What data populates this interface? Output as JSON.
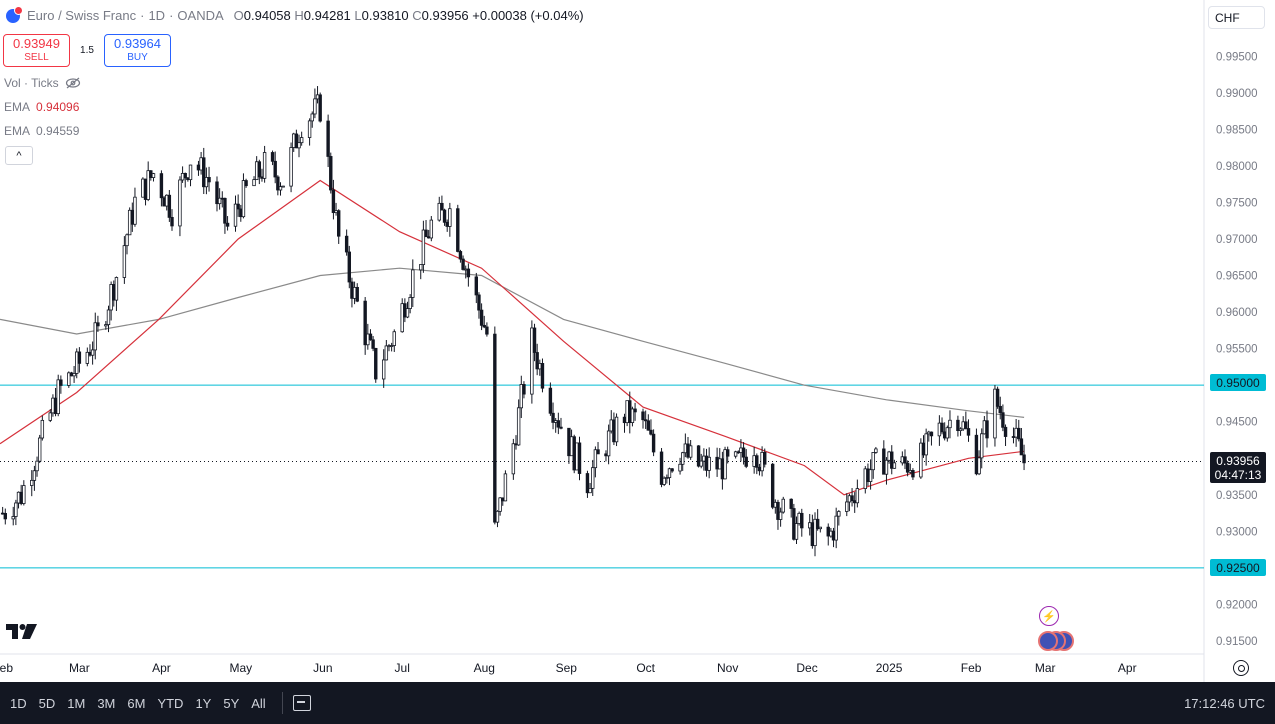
{
  "header": {
    "symbol": "Euro / Swiss Franc",
    "sep1": "·",
    "interval": "1D",
    "sep2": "·",
    "exchange": "OANDA",
    "ohlc": {
      "o_label": "O",
      "o": "0.94058",
      "h_label": "H",
      "h": "0.94281",
      "l_label": "L",
      "l": "0.93810",
      "c_label": "C",
      "c": "0.93956",
      "change": "+0.00038 (+0.04%)"
    }
  },
  "trade": {
    "sell_price": "0.93949",
    "sell_label": "SELL",
    "spread": "1.5",
    "buy_price": "0.93964",
    "buy_label": "BUY"
  },
  "indicators": {
    "vol": "Vol · Ticks",
    "ema1_label": "EMA",
    "ema1_value": "0.94096",
    "ema2_label": "EMA",
    "ema2_value": "0.94559",
    "collapse": "^"
  },
  "price_axis": {
    "currency": "CHF",
    "labels": [
      "0.99500",
      "0.99000",
      "0.98500",
      "0.98000",
      "0.97500",
      "0.97000",
      "0.96500",
      "0.96000",
      "0.95500",
      "0.95000",
      "0.94500",
      "0.94000",
      "0.93500",
      "0.93000",
      "0.92500",
      "0.92000",
      "0.91500"
    ],
    "level_high": "0.95000",
    "level_low": "0.92500",
    "current_price": "0.93956",
    "countdown": "04:47:13"
  },
  "time_axis": {
    "labels": [
      "Feb",
      "Mar",
      "Apr",
      "May",
      "Jun",
      "Jul",
      "Aug",
      "Sep",
      "Oct",
      "Nov",
      "Dec",
      "2025",
      "Feb",
      "Mar",
      "Apr"
    ]
  },
  "bottom_bar": {
    "ranges": [
      "1D",
      "5D",
      "1M",
      "3M",
      "6M",
      "YTD",
      "1Y",
      "5Y",
      "All"
    ],
    "clock": "17:12:46 UTC"
  },
  "colors": {
    "up": "#131722",
    "down": "#131722",
    "ema_fast": "#d6313b",
    "ema_slow": "#8a8a8a",
    "level_line": "#00bcd4",
    "accent": "#2962ff",
    "sell": "#f23645"
  },
  "chart_data": {
    "type": "candlestick",
    "ylim": [
      0.913,
      0.998
    ],
    "x_range": [
      "2024-01-31",
      "2025-04-30"
    ],
    "horizontal_levels": [
      0.95,
      0.925
    ],
    "current_price": 0.93956,
    "close_path": [
      [
        "2024-02-01",
        0.9325
      ],
      [
        "2024-02-08",
        0.935
      ],
      [
        "2024-02-15",
        0.942
      ],
      [
        "2024-02-22",
        0.949
      ],
      [
        "2024-03-01",
        0.953
      ],
      [
        "2024-03-08",
        0.957
      ],
      [
        "2024-03-15",
        0.965
      ],
      [
        "2024-03-22",
        0.975
      ],
      [
        "2024-03-29",
        0.979
      ],
      [
        "2024-04-05",
        0.974
      ],
      [
        "2024-04-12",
        0.981
      ],
      [
        "2024-04-19",
        0.978
      ],
      [
        "2024-04-26",
        0.9715
      ],
      [
        "2024-05-03",
        0.9765
      ],
      [
        "2024-05-10",
        0.98
      ],
      [
        "2024-05-17",
        0.978
      ],
      [
        "2024-05-24",
        0.986
      ],
      [
        "2024-05-31",
        0.988
      ],
      [
        "2024-06-07",
        0.97
      ],
      [
        "2024-06-14",
        0.961
      ],
      [
        "2024-06-21",
        0.952
      ],
      [
        "2024-06-28",
        0.957
      ],
      [
        "2024-07-05",
        0.965
      ],
      [
        "2024-07-12",
        0.972
      ],
      [
        "2024-07-19",
        0.974
      ],
      [
        "2024-07-26",
        0.965
      ],
      [
        "2024-08-02",
        0.957
      ],
      [
        "2024-08-05",
        0.93
      ],
      [
        "2024-08-12",
        0.942
      ],
      [
        "2024-08-19",
        0.956
      ],
      [
        "2024-08-26",
        0.948
      ],
      [
        "2024-09-02",
        0.942
      ],
      [
        "2024-09-09",
        0.937
      ],
      [
        "2024-09-16",
        0.942
      ],
      [
        "2024-09-23",
        0.946
      ],
      [
        "2024-09-30",
        0.945
      ],
      [
        "2024-10-07",
        0.938
      ],
      [
        "2024-10-14",
        0.941
      ],
      [
        "2024-10-21",
        0.939
      ],
      [
        "2024-10-28",
        0.939
      ],
      [
        "2024-11-04",
        0.939
      ],
      [
        "2024-11-11",
        0.942
      ],
      [
        "2024-11-18",
        0.935
      ],
      [
        "2024-11-25",
        0.931
      ],
      [
        "2024-12-02",
        0.93
      ],
      [
        "2024-12-09",
        0.929
      ],
      [
        "2024-12-16",
        0.934
      ],
      [
        "2024-12-23",
        0.938
      ],
      [
        "2024-12-30",
        0.94
      ],
      [
        "2025-01-06",
        0.939
      ],
      [
        "2025-01-13",
        0.94
      ],
      [
        "2025-01-20",
        0.944
      ],
      [
        "2025-01-27",
        0.946
      ],
      [
        "2025-02-03",
        0.94
      ],
      [
        "2025-02-10",
        0.948
      ],
      [
        "2025-02-17",
        0.943
      ],
      [
        "2025-02-21",
        0.93956
      ]
    ],
    "ema_fast": [
      [
        "2024-01-31",
        0.942
      ],
      [
        "2024-02-29",
        0.949
      ],
      [
        "2024-03-31",
        0.959
      ],
      [
        "2024-04-30",
        0.97
      ],
      [
        "2024-05-31",
        0.978
      ],
      [
        "2024-06-30",
        0.971
      ],
      [
        "2024-07-31",
        0.966
      ],
      [
        "2024-08-31",
        0.956
      ],
      [
        "2024-09-30",
        0.947
      ],
      [
        "2024-10-31",
        0.943
      ],
      [
        "2024-11-30",
        0.939
      ],
      [
        "2024-12-15",
        0.935
      ],
      [
        "2024-12-31",
        0.937
      ],
      [
        "2025-01-31",
        0.94
      ],
      [
        "2025-02-21",
        0.94096
      ]
    ],
    "ema_slow": [
      [
        "2024-01-31",
        0.959
      ],
      [
        "2024-02-29",
        0.957
      ],
      [
        "2024-03-31",
        0.959
      ],
      [
        "2024-04-30",
        0.962
      ],
      [
        "2024-05-31",
        0.965
      ],
      [
        "2024-06-30",
        0.966
      ],
      [
        "2024-07-31",
        0.965
      ],
      [
        "2024-08-31",
        0.959
      ],
      [
        "2024-09-30",
        0.956
      ],
      [
        "2024-10-31",
        0.953
      ],
      [
        "2024-11-30",
        0.95
      ],
      [
        "2024-12-31",
        0.948
      ],
      [
        "2025-01-31",
        0.9465
      ],
      [
        "2025-02-21",
        0.94559
      ]
    ]
  }
}
